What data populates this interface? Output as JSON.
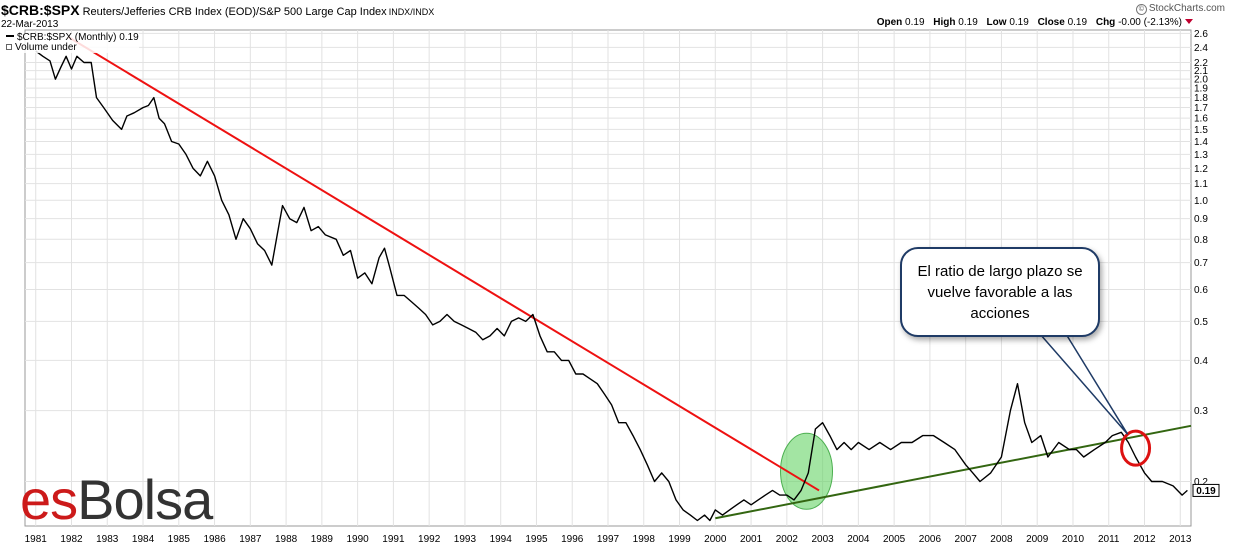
{
  "header": {
    "symbol": "$CRB:$SPX",
    "description": "Reuters/Jefferies CRB Index (EOD)/S&P 500 Large Cap Index",
    "exchange": "INDX/INDX",
    "date": "22-Mar-2013",
    "brand": "StockCharts.com",
    "brand_mark": "©",
    "ohlc": {
      "open_label": "Open",
      "open": "0.19",
      "high_label": "High",
      "high": "0.19",
      "low_label": "Low",
      "low": "0.19",
      "close_label": "Close",
      "close": "0.19",
      "chg_label": "Chg",
      "chg": "-0.00 (-2.13%)"
    }
  },
  "legend": {
    "series_label": "$CRB:$SPX (Monthly) 0.19",
    "volume_label": "Volume under"
  },
  "annotation": {
    "text": "El ratio de largo plazo se vuelve favorable a las acciones"
  },
  "logo": {
    "part1": "es",
    "part2": "Bolsa"
  },
  "chart_data": {
    "type": "line",
    "yscale": "log",
    "ylim": [
      0.155,
      2.65
    ],
    "xlim": [
      1980.7,
      2013.3
    ],
    "grid": true,
    "y_ticks": [
      2.6,
      2.4,
      2.2,
      2.1,
      2.0,
      1.9,
      1.8,
      1.7,
      1.6,
      1.5,
      1.4,
      1.3,
      1.2,
      1.1,
      1.0,
      0.9,
      0.8,
      0.7,
      0.6,
      0.5,
      0.4,
      0.3,
      0.2
    ],
    "y_tick_labels": [
      "2.6",
      "2.4",
      "2.2",
      "2.1",
      "2.0",
      "1.9",
      "1.8",
      "1.7",
      "1.6",
      "1.5",
      "1.4",
      "1.3",
      "1.2",
      "1.1",
      "1.0",
      "0.9",
      "0.8",
      "0.7",
      "0.6",
      "0.5",
      "0.4",
      "0.3",
      "0.2"
    ],
    "x_ticks": [
      "1981",
      "1982",
      "1983",
      "1984",
      "1985",
      "1986",
      "1987",
      "1988",
      "1989",
      "1990",
      "1991",
      "1992",
      "1993",
      "1994",
      "1995",
      "1996",
      "1997",
      "1998",
      "1999",
      "2000",
      "2001",
      "2002",
      "2003",
      "2004",
      "2005",
      "2006",
      "2007",
      "2008",
      "2009",
      "2010",
      "2011",
      "2012",
      "2013"
    ],
    "last_value_label": "0.19",
    "colors": {
      "series": "#000000",
      "downtrend": "#ee1111",
      "uptrend": "#336611",
      "highlight_fill": "#66d466",
      "circle": "#dd1111",
      "bubble_border": "#1f3b66"
    },
    "series": [
      {
        "values": [
          [
            1981.0,
            2.35
          ],
          [
            1981.2,
            2.28
          ],
          [
            1981.4,
            2.22
          ],
          [
            1981.55,
            2.0
          ],
          [
            1981.7,
            2.14
          ],
          [
            1981.85,
            2.28
          ],
          [
            1982.0,
            2.12
          ],
          [
            1982.15,
            2.28
          ],
          [
            1982.35,
            2.2
          ],
          [
            1982.55,
            2.2
          ],
          [
            1982.7,
            1.8
          ],
          [
            1982.9,
            1.7
          ],
          [
            1983.15,
            1.58
          ],
          [
            1983.4,
            1.5
          ],
          [
            1983.55,
            1.62
          ],
          [
            1983.75,
            1.65
          ],
          [
            1984.0,
            1.7
          ],
          [
            1984.15,
            1.72
          ],
          [
            1984.3,
            1.8
          ],
          [
            1984.45,
            1.6
          ],
          [
            1984.6,
            1.55
          ],
          [
            1984.8,
            1.4
          ],
          [
            1985.0,
            1.38
          ],
          [
            1985.2,
            1.3
          ],
          [
            1985.4,
            1.2
          ],
          [
            1985.6,
            1.15
          ],
          [
            1985.8,
            1.25
          ],
          [
            1986.0,
            1.15
          ],
          [
            1986.2,
            1.0
          ],
          [
            1986.4,
            0.92
          ],
          [
            1986.6,
            0.8
          ],
          [
            1986.8,
            0.9
          ],
          [
            1987.0,
            0.85
          ],
          [
            1987.2,
            0.78
          ],
          [
            1987.4,
            0.75
          ],
          [
            1987.6,
            0.69
          ],
          [
            1987.75,
            0.82
          ],
          [
            1987.9,
            0.97
          ],
          [
            1988.1,
            0.9
          ],
          [
            1988.3,
            0.88
          ],
          [
            1988.5,
            0.96
          ],
          [
            1988.7,
            0.84
          ],
          [
            1988.9,
            0.86
          ],
          [
            1989.1,
            0.82
          ],
          [
            1989.4,
            0.8
          ],
          [
            1989.6,
            0.73
          ],
          [
            1989.8,
            0.75
          ],
          [
            1990.0,
            0.64
          ],
          [
            1990.2,
            0.66
          ],
          [
            1990.4,
            0.62
          ],
          [
            1990.6,
            0.72
          ],
          [
            1990.75,
            0.76
          ],
          [
            1990.9,
            0.68
          ],
          [
            1991.1,
            0.58
          ],
          [
            1991.3,
            0.58
          ],
          [
            1991.5,
            0.56
          ],
          [
            1991.7,
            0.54
          ],
          [
            1991.9,
            0.52
          ],
          [
            1992.1,
            0.49
          ],
          [
            1992.3,
            0.5
          ],
          [
            1992.5,
            0.52
          ],
          [
            1992.7,
            0.5
          ],
          [
            1992.9,
            0.49
          ],
          [
            1993.1,
            0.48
          ],
          [
            1993.3,
            0.47
          ],
          [
            1993.5,
            0.45
          ],
          [
            1993.7,
            0.46
          ],
          [
            1993.9,
            0.48
          ],
          [
            1994.1,
            0.46
          ],
          [
            1994.3,
            0.5
          ],
          [
            1994.5,
            0.51
          ],
          [
            1994.7,
            0.5
          ],
          [
            1994.9,
            0.52
          ],
          [
            1995.1,
            0.46
          ],
          [
            1995.3,
            0.42
          ],
          [
            1995.5,
            0.42
          ],
          [
            1995.7,
            0.4
          ],
          [
            1995.9,
            0.4
          ],
          [
            1996.1,
            0.37
          ],
          [
            1996.3,
            0.37
          ],
          [
            1996.5,
            0.36
          ],
          [
            1996.7,
            0.35
          ],
          [
            1996.9,
            0.33
          ],
          [
            1997.1,
            0.31
          ],
          [
            1997.3,
            0.28
          ],
          [
            1997.5,
            0.28
          ],
          [
            1997.7,
            0.26
          ],
          [
            1997.9,
            0.24
          ],
          [
            1998.1,
            0.22
          ],
          [
            1998.3,
            0.2
          ],
          [
            1998.5,
            0.21
          ],
          [
            1998.7,
            0.2
          ],
          [
            1998.9,
            0.18
          ],
          [
            1999.1,
            0.17
          ],
          [
            1999.3,
            0.165
          ],
          [
            1999.5,
            0.16
          ],
          [
            1999.7,
            0.165
          ],
          [
            1999.85,
            0.16
          ],
          [
            2000.0,
            0.17
          ],
          [
            2000.2,
            0.165
          ],
          [
            2000.4,
            0.17
          ],
          [
            2000.6,
            0.175
          ],
          [
            2000.8,
            0.18
          ],
          [
            2001.0,
            0.175
          ],
          [
            2001.2,
            0.18
          ],
          [
            2001.4,
            0.185
          ],
          [
            2001.6,
            0.19
          ],
          [
            2001.8,
            0.185
          ],
          [
            2002.0,
            0.185
          ],
          [
            2002.2,
            0.18
          ],
          [
            2002.4,
            0.19
          ],
          [
            2002.6,
            0.21
          ],
          [
            2002.8,
            0.27
          ],
          [
            2003.0,
            0.28
          ],
          [
            2003.2,
            0.26
          ],
          [
            2003.4,
            0.24
          ],
          [
            2003.6,
            0.25
          ],
          [
            2003.8,
            0.24
          ],
          [
            2004.0,
            0.25
          ],
          [
            2004.3,
            0.24
          ],
          [
            2004.6,
            0.25
          ],
          [
            2004.9,
            0.24
          ],
          [
            2005.2,
            0.25
          ],
          [
            2005.5,
            0.25
          ],
          [
            2005.8,
            0.26
          ],
          [
            2006.1,
            0.26
          ],
          [
            2006.4,
            0.25
          ],
          [
            2006.7,
            0.24
          ],
          [
            2007.0,
            0.22
          ],
          [
            2007.2,
            0.21
          ],
          [
            2007.4,
            0.2
          ],
          [
            2007.7,
            0.21
          ],
          [
            2008.0,
            0.23
          ],
          [
            2008.25,
            0.3
          ],
          [
            2008.45,
            0.35
          ],
          [
            2008.65,
            0.28
          ],
          [
            2008.85,
            0.25
          ],
          [
            2009.1,
            0.26
          ],
          [
            2009.3,
            0.23
          ],
          [
            2009.6,
            0.25
          ],
          [
            2009.9,
            0.24
          ],
          [
            2010.1,
            0.24
          ],
          [
            2010.3,
            0.23
          ],
          [
            2010.6,
            0.24
          ],
          [
            2010.9,
            0.25
          ],
          [
            2011.1,
            0.26
          ],
          [
            2011.35,
            0.265
          ],
          [
            2011.55,
            0.25
          ],
          [
            2011.75,
            0.23
          ],
          [
            2012.0,
            0.21
          ],
          [
            2012.2,
            0.2
          ],
          [
            2012.5,
            0.2
          ],
          [
            2012.8,
            0.195
          ],
          [
            2013.05,
            0.185
          ],
          [
            2013.2,
            0.19
          ]
        ]
      }
    ],
    "trendlines": [
      {
        "from": [
          1981.9,
          2.55
        ],
        "to": [
          2002.9,
          0.19
        ]
      },
      {
        "from": [
          2000.0,
          0.162
        ],
        "to": [
          2013.3,
          0.275
        ]
      }
    ],
    "highlight_ellipse": {
      "center": [
        2002.55,
        0.212
      ]
    },
    "circle_marker": {
      "center": [
        2011.75,
        0.242
      ]
    }
  }
}
